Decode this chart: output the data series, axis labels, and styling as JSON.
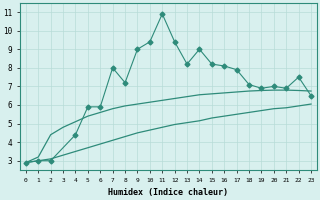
{
  "xlabel": "Humidex (Indice chaleur)",
  "x_values": [
    0,
    1,
    2,
    3,
    4,
    5,
    6,
    7,
    8,
    9,
    10,
    11,
    12,
    13,
    14,
    15,
    16,
    17,
    18,
    19,
    20,
    21,
    22,
    23
  ],
  "line1_y": [
    2.9,
    3.0,
    3.0,
    null,
    4.4,
    5.9,
    5.9,
    8.0,
    7.2,
    9.0,
    9.4,
    10.9,
    9.4,
    8.2,
    9.0,
    8.2,
    8.1,
    7.9,
    7.1,
    6.9,
    7.0,
    6.9,
    7.5,
    6.5
  ],
  "line2_y": [
    2.9,
    3.2,
    4.4,
    4.8,
    5.1,
    5.4,
    5.6,
    5.8,
    5.95,
    6.05,
    6.15,
    6.25,
    6.35,
    6.45,
    6.55,
    6.6,
    6.65,
    6.7,
    6.75,
    6.78,
    6.8,
    6.8,
    6.78,
    6.75
  ],
  "line3_y": [
    2.9,
    3.0,
    3.1,
    3.3,
    3.5,
    3.7,
    3.9,
    4.1,
    4.3,
    4.5,
    4.65,
    4.8,
    4.95,
    5.05,
    5.15,
    5.3,
    5.4,
    5.5,
    5.6,
    5.7,
    5.8,
    5.85,
    5.95,
    6.05
  ],
  "line_color": "#2e8b7a",
  "bg_color": "#d8f0ee",
  "grid_color": "#b8dcd8",
  "ylim": [
    2.5,
    11.5
  ],
  "xlim": [
    -0.5,
    23.5
  ],
  "yticks": [
    3,
    4,
    5,
    6,
    7,
    8,
    9,
    10,
    11
  ],
  "xticks": [
    0,
    1,
    2,
    3,
    4,
    5,
    6,
    7,
    8,
    9,
    10,
    11,
    12,
    13,
    14,
    15,
    16,
    17,
    18,
    19,
    20,
    21,
    22,
    23
  ]
}
